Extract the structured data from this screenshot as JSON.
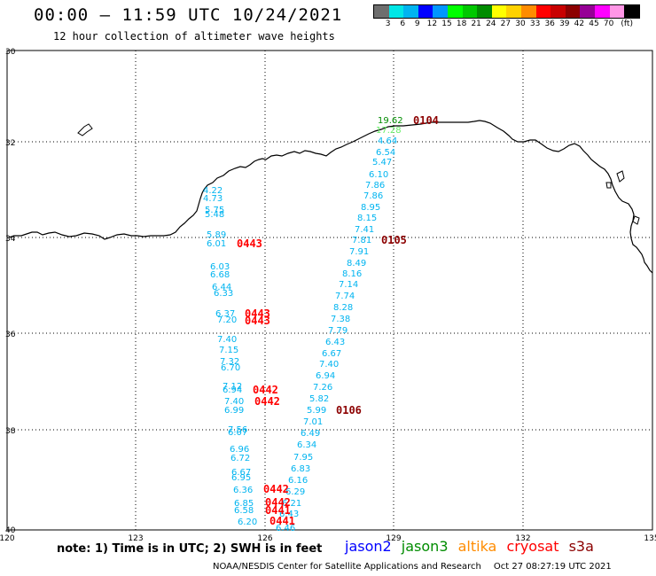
{
  "header": {
    "title": "00:00 – 11:59 UTC 10/24/2021",
    "subtitle": "12 hour collection of altimeter wave heights"
  },
  "colorbar": {
    "colors": [
      "#6e6e6e",
      "#00e6e6",
      "#00b4f0",
      "#0000ff",
      "#0096ff",
      "#00ff00",
      "#00c800",
      "#008c00",
      "#ffff00",
      "#ffd200",
      "#ff8c00",
      "#ff0000",
      "#c80000",
      "#8c0000",
      "#960096",
      "#ff00ff",
      "#ff96e6",
      "#000000"
    ],
    "ticks": [
      "3",
      "6",
      "9",
      "12",
      "15",
      "18",
      "21",
      "24",
      "27",
      "30",
      "33",
      "36",
      "39",
      "42",
      "45",
      "70",
      "(ft)"
    ]
  },
  "map": {
    "lat_labels": [
      "30",
      "32",
      "34",
      "36",
      "38",
      "40"
    ],
    "lon_labels": [
      "120",
      "123",
      "126",
      "129",
      "132",
      "135"
    ],
    "coastline_color": "#000000"
  },
  "satellite_colors": {
    "jason2": "#0000ff",
    "jason3": "#008c00",
    "altika": "#ff8c00",
    "cryosat": "#ff0000",
    "s3a": "#8c0000",
    "data_text": "#00b4f0",
    "light_green": "#66ee66",
    "high_green": "#008c00"
  },
  "waves": [
    {
      "text": "4.22",
      "c": "data_text"
    },
    {
      "text": "4.73",
      "c": "data_text"
    },
    {
      "text": "5.75",
      "c": "data_text"
    },
    {
      "text": "5.48",
      "c": "data_text"
    },
    {
      "text": "5.89",
      "c": "data_text"
    },
    {
      "text": "6.01",
      "c": "data_text"
    },
    {
      "text": "6.03",
      "c": "data_text"
    },
    {
      "text": "6.68",
      "c": "data_text"
    },
    {
      "text": "6.44",
      "c": "data_text"
    },
    {
      "text": "6.33",
      "c": "data_text"
    },
    {
      "text": "6.37",
      "c": "data_text"
    },
    {
      "text": "7.20",
      "c": "data_text"
    },
    {
      "text": "7.40",
      "c": "data_text"
    },
    {
      "text": "7.15",
      "c": "data_text"
    },
    {
      "text": "7.32",
      "c": "data_text"
    },
    {
      "text": "6.70",
      "c": "data_text"
    },
    {
      "text": "7.12",
      "c": "data_text"
    },
    {
      "text": "6.94",
      "c": "data_text"
    },
    {
      "text": "7.40",
      "c": "data_text"
    },
    {
      "text": "6.99",
      "c": "data_text"
    },
    {
      "text": "7.56",
      "c": "data_text"
    },
    {
      "text": "6.07",
      "c": "data_text"
    },
    {
      "text": "6.96",
      "c": "data_text"
    },
    {
      "text": "6.72",
      "c": "data_text"
    },
    {
      "text": "6.67",
      "c": "data_text"
    },
    {
      "text": "6.95",
      "c": "data_text"
    },
    {
      "text": "6.36",
      "c": "data_text"
    },
    {
      "text": "6.85",
      "c": "data_text"
    },
    {
      "text": "6.58",
      "c": "data_text"
    },
    {
      "text": "6.20",
      "c": "data_text"
    },
    {
      "text": "19.62",
      "c": "high_green"
    },
    {
      "text": "17.28",
      "c": "light_green"
    },
    {
      "text": "4.64",
      "c": "data_text"
    },
    {
      "text": "6.54",
      "c": "data_text"
    },
    {
      "text": "5.47",
      "c": "data_text"
    },
    {
      "text": "6.10",
      "c": "data_text"
    },
    {
      "text": "7.86",
      "c": "data_text"
    },
    {
      "text": "7.86",
      "c": "data_text"
    },
    {
      "text": "8.95",
      "c": "data_text"
    },
    {
      "text": "8.15",
      "c": "data_text"
    },
    {
      "text": "7.41",
      "c": "data_text"
    },
    {
      "text": "7.81",
      "c": "data_text"
    },
    {
      "text": "7.91",
      "c": "data_text"
    },
    {
      "text": "8.49",
      "c": "data_text"
    },
    {
      "text": "8.16",
      "c": "data_text"
    },
    {
      "text": "7.14",
      "c": "data_text"
    },
    {
      "text": "7.74",
      "c": "data_text"
    },
    {
      "text": "8.28",
      "c": "data_text"
    },
    {
      "text": "7.38",
      "c": "data_text"
    },
    {
      "text": "7.79",
      "c": "data_text"
    },
    {
      "text": "6.43",
      "c": "data_text"
    },
    {
      "text": "6.67",
      "c": "data_text"
    },
    {
      "text": "7.40",
      "c": "data_text"
    },
    {
      "text": "6.94",
      "c": "data_text"
    },
    {
      "text": "7.26",
      "c": "data_text"
    },
    {
      "text": "5.82",
      "c": "data_text"
    },
    {
      "text": "5.99",
      "c": "data_text"
    },
    {
      "text": "7.01",
      "c": "data_text"
    },
    {
      "text": "6.49",
      "c": "data_text"
    },
    {
      "text": "6.34",
      "c": "data_text"
    },
    {
      "text": "7.95",
      "c": "data_text"
    },
    {
      "text": "6.83",
      "c": "data_text"
    },
    {
      "text": "6.16",
      "c": "data_text"
    },
    {
      "text": "6.29",
      "c": "data_text"
    },
    {
      "text": "6.21",
      "c": "data_text"
    },
    {
      "text": "6.43",
      "c": "data_text"
    },
    {
      "text": "6.46",
      "c": "data_text"
    }
  ],
  "times": [
    {
      "text": "0104",
      "c": "s3a"
    },
    {
      "text": "0105",
      "c": "s3a"
    },
    {
      "text": "0106",
      "c": "s3a"
    },
    {
      "text": "0443",
      "c": "cryosat"
    },
    {
      "text": "0443",
      "c": "cryosat"
    },
    {
      "text": "0443",
      "c": "cryosat"
    },
    {
      "text": "0442",
      "c": "cryosat"
    },
    {
      "text": "0442",
      "c": "cryosat"
    },
    {
      "text": "0442",
      "c": "cryosat"
    },
    {
      "text": "0442",
      "c": "cryosat"
    },
    {
      "text": "0441",
      "c": "cryosat"
    },
    {
      "text": "0441",
      "c": "cryosat"
    }
  ],
  "footer": {
    "note": "note: 1) Time is in UTC; 2) SWH is in feet",
    "legend": [
      "jason2",
      "jason3",
      "altika",
      "cryosat",
      "s3a"
    ],
    "credit": "NOAA/NESDIS Center for Satellite Applications and Research",
    "timestamp": "Oct 27 08:27:19 UTC 2021"
  }
}
